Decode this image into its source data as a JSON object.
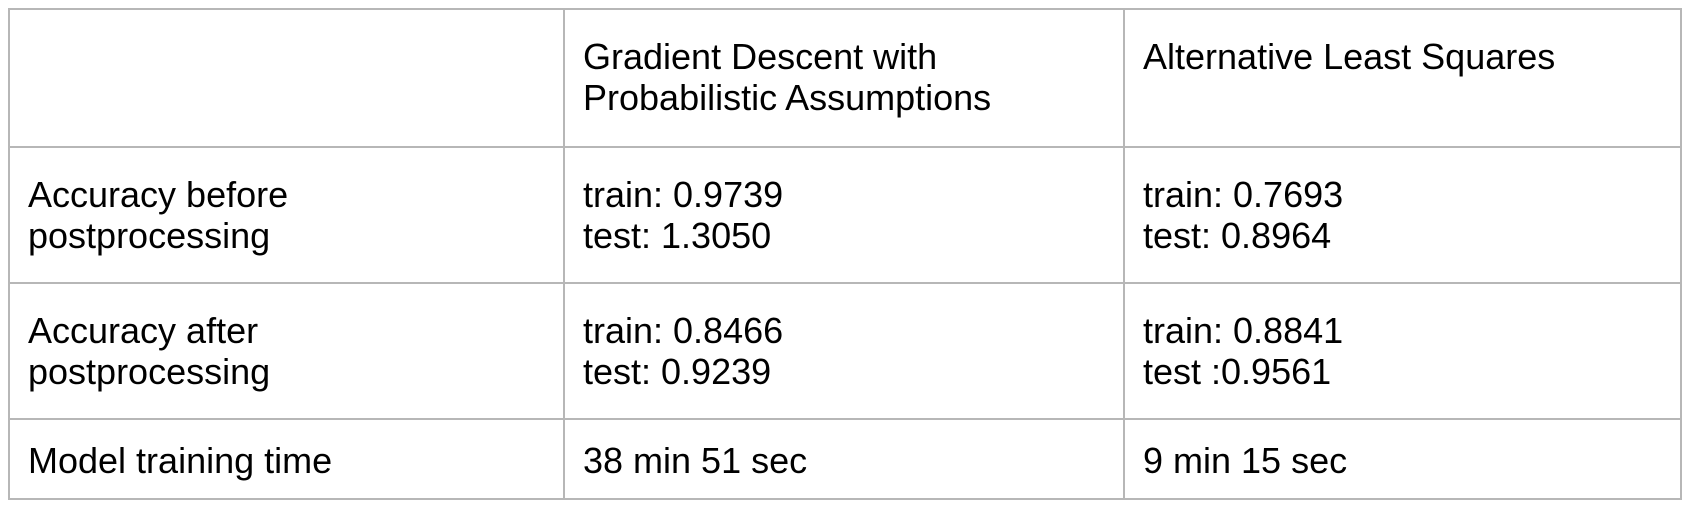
{
  "table": {
    "headers": [
      "",
      "Gradient Descent with\nProbabilistic Assumptions",
      "Alternative Least Squares"
    ],
    "rows": [
      {
        "label": "Accuracy before\npostprocessing",
        "cells": [
          "train: 0.9739\ntest: 1.3050",
          "train: 0.7693\ntest: 0.8964"
        ]
      },
      {
        "label": "Accuracy after\npostprocessing",
        "cells": [
          "train: 0.8466\ntest: 0.9239",
          "train: 0.8841\ntest :0.9561"
        ]
      },
      {
        "label": "Model training time",
        "cells": [
          "38 min 51 sec",
          "9 min 15 sec"
        ]
      }
    ]
  }
}
